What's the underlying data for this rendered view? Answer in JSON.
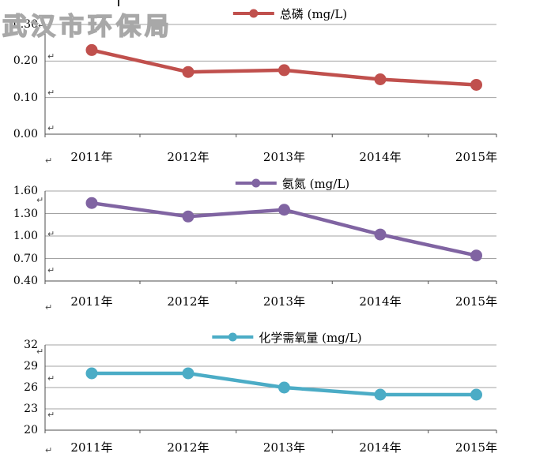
{
  "watermark": "武汉市环保局",
  "paragraph_mark": "↵",
  "chart_data": [
    {
      "type": "line",
      "title": "总磷 (mg/L)",
      "series_name": "总磷",
      "unit": "mg/L",
      "color": "#c0504d",
      "categories": [
        "2011年",
        "2012年",
        "2013年",
        "2014年",
        "2015年"
      ],
      "values": [
        0.23,
        0.17,
        0.175,
        0.15,
        0.135
      ],
      "ytick_labels": [
        "0.00",
        "0.10",
        "0.20",
        "0.30"
      ],
      "ylim": [
        0.0,
        0.3
      ],
      "grid": true,
      "legend_position": "top"
    },
    {
      "type": "line",
      "title": "氨氮 (mg/L)",
      "series_name": "氨氮",
      "unit": "mg/L",
      "color": "#8064a2",
      "categories": [
        "2011年",
        "2012年",
        "2013年",
        "2014年",
        "2015年"
      ],
      "values": [
        1.44,
        1.26,
        1.35,
        1.02,
        0.74
      ],
      "ytick_labels": [
        "0.40",
        "0.70",
        "1.00",
        "1.30",
        "1.60"
      ],
      "ylim": [
        0.4,
        1.6
      ],
      "grid": true,
      "legend_position": "top"
    },
    {
      "type": "line",
      "title": "化学需氧量 (mg/L)",
      "series_name": "化学需氧量",
      "unit": "mg/L",
      "color": "#4bacc6",
      "categories": [
        "2011年",
        "2012年",
        "2013年",
        "2014年",
        "2015年"
      ],
      "values": [
        28,
        28,
        26,
        25,
        25
      ],
      "ytick_labels": [
        "20",
        "23",
        "26",
        "29",
        "32"
      ],
      "ylim": [
        20,
        32
      ],
      "grid": true,
      "legend_position": "top"
    }
  ]
}
